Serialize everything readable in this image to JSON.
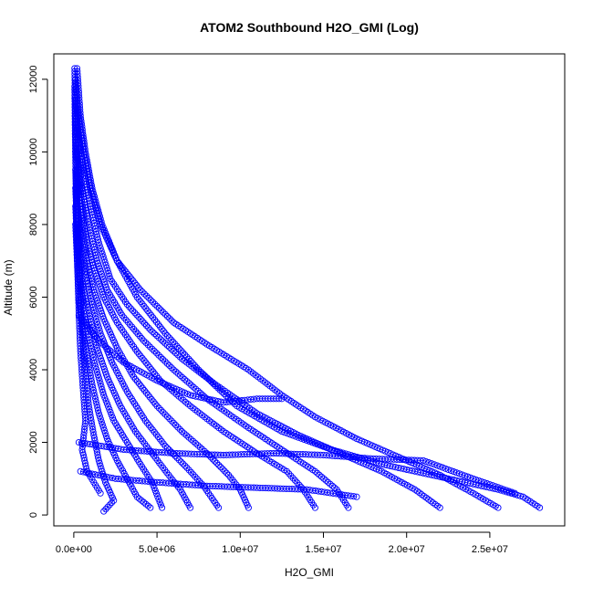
{
  "chart_data": {
    "type": "scatter",
    "title": "ATOM2 Southbound H2O_GMI (Log)",
    "xlabel": "H2O_GMI",
    "ylabel": "Altitude (m)",
    "xlim": [
      -1200000,
      29500000
    ],
    "ylim": [
      -300,
      12700
    ],
    "x_ticks": [
      {
        "value": 0,
        "label": "0.0e+00"
      },
      {
        "value": 5000000,
        "label": "5.0e+06"
      },
      {
        "value": 10000000,
        "label": "1.0e+07"
      },
      {
        "value": 15000000,
        "label": "1.5e+07"
      },
      {
        "value": 20000000,
        "label": "2.0e+07"
      },
      {
        "value": 25000000,
        "label": "2.5e+07"
      }
    ],
    "y_ticks": [
      {
        "value": 0,
        "label": "0"
      },
      {
        "value": 2000,
        "label": "2000"
      },
      {
        "value": 4000,
        "label": "4000"
      },
      {
        "value": 6000,
        "label": "6000"
      },
      {
        "value": 8000,
        "label": "8000"
      },
      {
        "value": 10000,
        "label": "10000"
      },
      {
        "value": 12000,
        "label": "12000"
      }
    ],
    "grid": false,
    "legend": "none",
    "marker": "open-circle",
    "series_color": "#0000ff",
    "series": [
      {
        "points": [
          [
            200000,
            12300
          ],
          [
            400000,
            11000
          ],
          [
            700000,
            10000
          ],
          [
            1100000,
            9000
          ],
          [
            1700000,
            8000
          ],
          [
            2600000,
            7000
          ],
          [
            3800000,
            6000
          ],
          [
            5500000,
            5000
          ],
          [
            7500000,
            4000
          ],
          [
            9800000,
            3000
          ],
          [
            12500000,
            2300
          ],
          [
            15500000,
            1800
          ],
          [
            18500000,
            1400
          ],
          [
            21500000,
            1100
          ],
          [
            23500000,
            900
          ],
          [
            25500000,
            700
          ],
          [
            27000000,
            500
          ],
          [
            28000000,
            200
          ]
        ]
      },
      {
        "points": [
          [
            100000,
            12000
          ],
          [
            300000,
            11000
          ],
          [
            600000,
            10000
          ],
          [
            1000000,
            9000
          ],
          [
            1600000,
            8000
          ],
          [
            2600000,
            7000
          ],
          [
            4000000,
            6200
          ],
          [
            6000000,
            5300
          ],
          [
            8000000,
            4700
          ],
          [
            10500000,
            4000
          ],
          [
            12500000,
            3300
          ],
          [
            14500000,
            2700
          ],
          [
            17000000,
            2100
          ],
          [
            19500000,
            1600
          ],
          [
            22000000,
            1100
          ],
          [
            24000000,
            600
          ],
          [
            25500000,
            200
          ]
        ]
      },
      {
        "points": [
          [
            100000,
            11500
          ],
          [
            300000,
            10500
          ],
          [
            600000,
            9500
          ],
          [
            1000000,
            8500
          ],
          [
            1500000,
            7500
          ],
          [
            2200000,
            6500
          ],
          [
            3200000,
            5800
          ],
          [
            4600000,
            5100
          ],
          [
            6500000,
            4300
          ],
          [
            8500000,
            3600
          ],
          [
            11000000,
            2800
          ],
          [
            13500000,
            2200
          ],
          [
            16000000,
            1700
          ],
          [
            18500000,
            1200
          ],
          [
            20500000,
            700
          ],
          [
            22000000,
            200
          ]
        ]
      },
      {
        "points": [
          [
            100000,
            11000
          ],
          [
            300000,
            10000
          ],
          [
            500000,
            9000
          ],
          [
            900000,
            8000
          ],
          [
            1400000,
            7000
          ],
          [
            2000000,
            6200
          ],
          [
            2900000,
            5500
          ],
          [
            4200000,
            4800
          ],
          [
            6000000,
            4000
          ],
          [
            8000000,
            3200
          ],
          [
            10500000,
            2400
          ],
          [
            12500000,
            1800
          ],
          [
            14500000,
            1200
          ],
          [
            15800000,
            700
          ],
          [
            16500000,
            200
          ]
        ]
      },
      {
        "points": [
          [
            100000,
            10500
          ],
          [
            300000,
            9500
          ],
          [
            500000,
            8500
          ],
          [
            800000,
            7500
          ],
          [
            1200000,
            6800
          ],
          [
            1800000,
            6000
          ],
          [
            2600000,
            5300
          ],
          [
            3800000,
            4500
          ],
          [
            5200000,
            3700
          ],
          [
            7000000,
            3000
          ],
          [
            9000000,
            2300
          ],
          [
            11000000,
            1700
          ],
          [
            12800000,
            1200
          ],
          [
            13800000,
            700
          ],
          [
            14500000,
            200
          ]
        ]
      },
      {
        "points": [
          [
            100000,
            10000
          ],
          [
            300000,
            9000
          ],
          [
            500000,
            8000
          ],
          [
            800000,
            7000
          ],
          [
            1200000,
            6200
          ],
          [
            1800000,
            5400
          ],
          [
            2600000,
            4600
          ],
          [
            3600000,
            3800
          ],
          [
            5000000,
            3000
          ],
          [
            6500000,
            2300
          ],
          [
            8000000,
            1700
          ],
          [
            9300000,
            1100
          ],
          [
            10000000,
            700
          ],
          [
            10500000,
            200
          ]
        ]
      },
      {
        "points": [
          [
            100000,
            9500
          ],
          [
            200000,
            8500
          ],
          [
            400000,
            7500
          ],
          [
            700000,
            6700
          ],
          [
            1100000,
            5800
          ],
          [
            1600000,
            5000
          ],
          [
            2300000,
            4200
          ],
          [
            3200000,
            3400
          ],
          [
            4300000,
            2600
          ],
          [
            5500000,
            1900
          ],
          [
            6800000,
            1300
          ],
          [
            7800000,
            800
          ],
          [
            8700000,
            200
          ]
        ]
      },
      {
        "points": [
          [
            100000,
            9000
          ],
          [
            200000,
            8000
          ],
          [
            400000,
            7000
          ],
          [
            600000,
            6200
          ],
          [
            1000000,
            5400
          ],
          [
            1400000,
            4600
          ],
          [
            2000000,
            3800
          ],
          [
            2800000,
            3000
          ],
          [
            3700000,
            2300
          ],
          [
            4700000,
            1700
          ],
          [
            5700000,
            1100
          ],
          [
            6400000,
            700
          ],
          [
            7000000,
            200
          ]
        ]
      },
      {
        "points": [
          [
            100000,
            8500
          ],
          [
            200000,
            7500
          ],
          [
            400000,
            6500
          ],
          [
            600000,
            5700
          ],
          [
            900000,
            4900
          ],
          [
            1300000,
            4100
          ],
          [
            1800000,
            3300
          ],
          [
            2400000,
            2600
          ],
          [
            3200000,
            2000
          ],
          [
            4000000,
            1400
          ],
          [
            4700000,
            900
          ],
          [
            5300000,
            200
          ]
        ]
      },
      {
        "points": [
          [
            100000,
            8000
          ],
          [
            200000,
            7000
          ],
          [
            300000,
            6000
          ],
          [
            500000,
            5200
          ],
          [
            800000,
            4400
          ],
          [
            1100000,
            3600
          ],
          [
            1500000,
            2800
          ],
          [
            2000000,
            2100
          ],
          [
            2600000,
            1500
          ],
          [
            3200000,
            1000
          ],
          [
            3800000,
            500
          ],
          [
            4600000,
            200
          ]
        ]
      },
      {
        "points": [
          [
            50000,
            12300
          ],
          [
            100000,
            11000
          ],
          [
            150000,
            10000
          ],
          [
            200000,
            9000
          ],
          [
            250000,
            8000
          ],
          [
            300000,
            7000
          ],
          [
            400000,
            6000
          ],
          [
            500000,
            5000
          ],
          [
            700000,
            4000
          ],
          [
            900000,
            3000
          ],
          [
            1200000,
            2200
          ],
          [
            1500000,
            1500
          ],
          [
            1900000,
            900
          ],
          [
            2400000,
            400
          ],
          [
            1800000,
            100
          ]
        ]
      },
      {
        "points": [
          [
            50000,
            11800
          ],
          [
            80000,
            10500
          ],
          [
            120000,
            9200
          ],
          [
            160000,
            8000
          ],
          [
            220000,
            6800
          ],
          [
            300000,
            5600
          ],
          [
            400000,
            4500
          ],
          [
            550000,
            3500
          ],
          [
            700000,
            2600
          ],
          [
            500000,
            1800
          ],
          [
            800000,
            1200
          ],
          [
            1200000,
            900
          ],
          [
            1600000,
            600
          ]
        ]
      },
      {
        "points": [
          [
            300000,
            5500
          ],
          [
            1500000,
            4800
          ],
          [
            3000000,
            4200
          ],
          [
            5000000,
            3700
          ],
          [
            7000000,
            3300
          ],
          [
            9000000,
            3100
          ],
          [
            11000000,
            3200
          ],
          [
            12500000,
            3200
          ]
        ]
      },
      {
        "points": [
          [
            300000,
            2000
          ],
          [
            3000000,
            1800
          ],
          [
            6000000,
            1700
          ],
          [
            9000000,
            1650
          ],
          [
            12000000,
            1700
          ],
          [
            15000000,
            1650
          ],
          [
            18000000,
            1550
          ],
          [
            21000000,
            1500
          ],
          [
            24000000,
            1000
          ],
          [
            26500000,
            600
          ]
        ]
      },
      {
        "points": [
          [
            400000,
            1200
          ],
          [
            2500000,
            1000
          ],
          [
            5000000,
            900
          ],
          [
            8000000,
            800
          ],
          [
            11000000,
            750
          ],
          [
            14000000,
            700
          ],
          [
            17000000,
            500
          ]
        ]
      }
    ]
  }
}
